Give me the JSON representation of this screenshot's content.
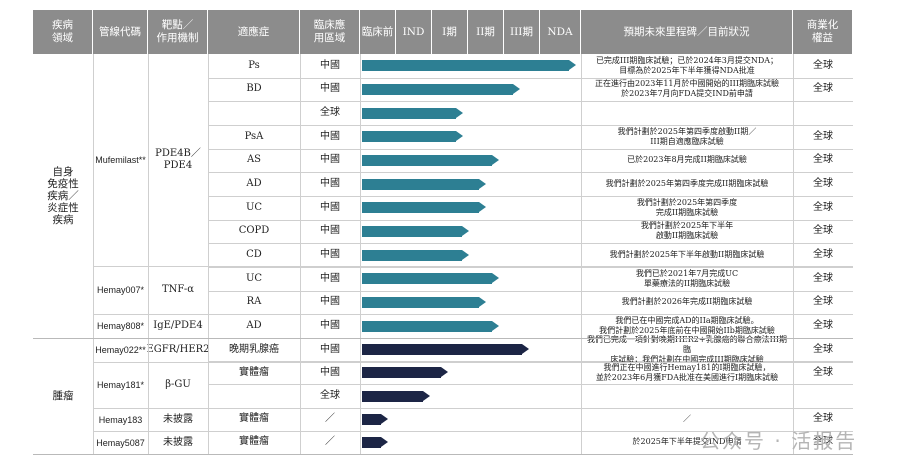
{
  "headers": {
    "area": "疾病\n領域",
    "code": "管線代碼",
    "target": "靶點／\n作用機制",
    "indication": "適應症",
    "region": "臨床應\n用區域",
    "p0": "臨床前",
    "p1": "IND",
    "p2": "I期",
    "p3": "II期",
    "p4": "III期",
    "p5": "NDA",
    "plan": "預期未來里程碑／目前狀況",
    "rights": "商業化\n權益"
  },
  "areas": {
    "autoimmune": "自身\n免疫性\n疾病／\n炎症性\n疾病",
    "oncology": "腫瘤"
  },
  "codes": {
    "mufemilast": "Mufemilast**",
    "hemay007": "Hemay007*",
    "hemay808": "Hemay808*",
    "hemay022": "Hemay022**",
    "hemay181": "Hemay181*",
    "hemay183": "Hemay183",
    "hemay5087": "Hemay5087"
  },
  "targets": {
    "pde4": "PDE4B／\nPDE4",
    "tnf": "TNF-α",
    "ige": "IgE/PDE4",
    "egfr": "EGFR/HER2",
    "bgu": "β-GU",
    "undisclosed1": "未披露",
    "undisclosed2": "未披露"
  },
  "rows": [
    {
      "indication": "Ps",
      "region": "中國",
      "progress": 1.0,
      "bar": "teal",
      "plan": "已完成III期臨床試驗；已於2024年3月提交NDA；\n目標為於2025年下半年獲得NDA批准",
      "rights": "全球"
    },
    {
      "indication": "BD",
      "region": "中國",
      "progress": 0.74,
      "bar": "teal",
      "plan": "正在進行由2023年11月於中國開始的III期臨床試驗\n於2023年7月向FDA提交IND前申請",
      "rights": "全球"
    },
    {
      "indication": "",
      "region": "全球",
      "progress": 0.47,
      "bar": "teal",
      "plan": "",
      "rights": ""
    },
    {
      "indication": "PsA",
      "region": "中國",
      "progress": 0.47,
      "bar": "teal",
      "plan": "我們計劃於2025年第四季度啟動II期／\nIII期自適應臨床試驗",
      "rights": "全球"
    },
    {
      "indication": "AS",
      "region": "中國",
      "progress": 0.64,
      "bar": "teal",
      "plan": "已於2023年8月完成II期臨床試驗",
      "rights": "全球"
    },
    {
      "indication": "AD",
      "region": "中國",
      "progress": 0.58,
      "bar": "teal",
      "plan": "我們計劃於2025年第四季度完成II期臨床試驗",
      "rights": "全球"
    },
    {
      "indication": "UC",
      "region": "中國",
      "progress": 0.58,
      "bar": "teal",
      "plan": "我們計劃於2025年第四季度\n完成II期臨床試驗",
      "rights": "全球"
    },
    {
      "indication": "COPD",
      "region": "中國",
      "progress": 0.5,
      "bar": "teal",
      "plan": "我們計劃於2025年下半年\n啟動II期臨床試驗",
      "rights": "全球"
    },
    {
      "indication": "CD",
      "region": "中國",
      "progress": 0.5,
      "bar": "teal",
      "plan": "我們計劃於2025年下半年啟動II期臨床試驗",
      "rights": "全球"
    },
    {
      "indication": "UC",
      "region": "中國",
      "progress": 0.64,
      "bar": "teal",
      "plan": "我們已於2021年7月完成UC\n單藥療法的II期臨床試驗",
      "rights": "全球"
    },
    {
      "indication": "RA",
      "region": "中國",
      "progress": 0.58,
      "bar": "teal",
      "plan": "我們計劃於2026年完成II期臨床試驗",
      "rights": "全球"
    },
    {
      "indication": "AD",
      "region": "中國",
      "progress": 0.64,
      "bar": "teal",
      "plan": "我們已在中國完成AD的IIa期臨床試驗。\n我們計劃於2025年底前在中國開始IIb期臨床試驗",
      "rights": "全球"
    },
    {
      "indication": "晚期乳腺癌",
      "region": "中國",
      "progress": 0.78,
      "bar": "navy",
      "plan": "我們已完成一項針對晚期HER2+乳腺癌的聯合療法III期臨\n床試驗；我們計劃在中國完成III期臨床試驗",
      "rights": "全球"
    },
    {
      "indication": "實體瘤",
      "region": "中國",
      "progress": 0.4,
      "bar": "navy",
      "plan": "我們正在中國進行Hemay181的I期臨床試驗，\n並於2023年6月獲FDA批准在美國進行I期臨床試驗",
      "rights": "全球"
    },
    {
      "indication": "",
      "region": "全球",
      "progress": 0.32,
      "bar": "navy",
      "plan": "",
      "rights": ""
    },
    {
      "indication": "實體瘤",
      "region": "／",
      "progress": 0.12,
      "bar": "navy",
      "plan": "／",
      "rights": "全球"
    },
    {
      "indication": "實體瘤",
      "region": "／",
      "progress": 0.12,
      "bar": "navy",
      "plan": "於2025年下半年提交IND申請",
      "rights": "全球"
    }
  ],
  "watermark": "公众号 · 活报告"
}
